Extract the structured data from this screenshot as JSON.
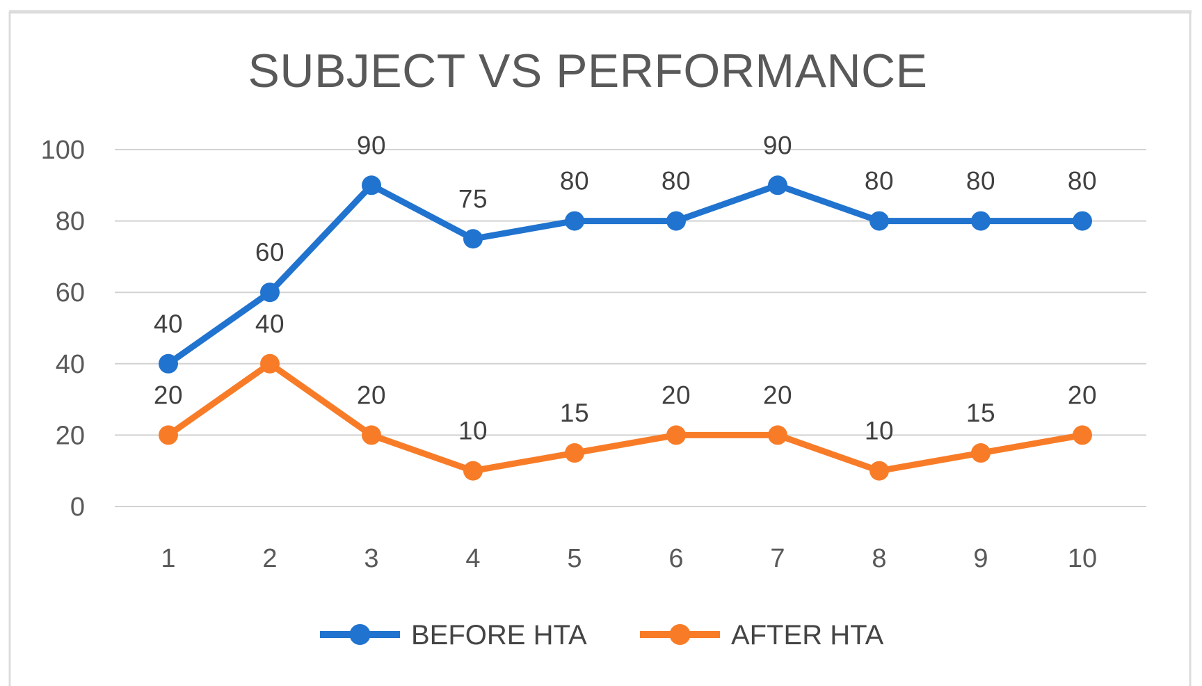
{
  "chart_data": {
    "type": "line",
    "title": "SUBJECT VS PERFORMANCE",
    "xlabel": "",
    "ylabel": "",
    "categories": [
      "1",
      "2",
      "3",
      "4",
      "5",
      "6",
      "7",
      "8",
      "9",
      "10"
    ],
    "series": [
      {
        "name": "BEFORE HTA",
        "color": "#2073CE",
        "values": [
          40,
          60,
          90,
          75,
          80,
          80,
          90,
          80,
          80,
          80
        ]
      },
      {
        "name": "AFTER HTA",
        "color": "#F87C28",
        "values": [
          20,
          40,
          20,
          10,
          15,
          20,
          20,
          10,
          15,
          20
        ]
      }
    ],
    "ylim": [
      0,
      100
    ],
    "yticks": [
      0,
      20,
      40,
      60,
      80,
      100
    ],
    "grid": true,
    "data_labels": true,
    "legend_position": "bottom",
    "colors": {
      "title": "#595959",
      "axis_labels": "#595959",
      "data_labels": "#404040",
      "legend_labels": "#444444",
      "gridline": "#D2D2D2",
      "border": "#DCDCDC",
      "background": "#FFFFFF"
    }
  }
}
